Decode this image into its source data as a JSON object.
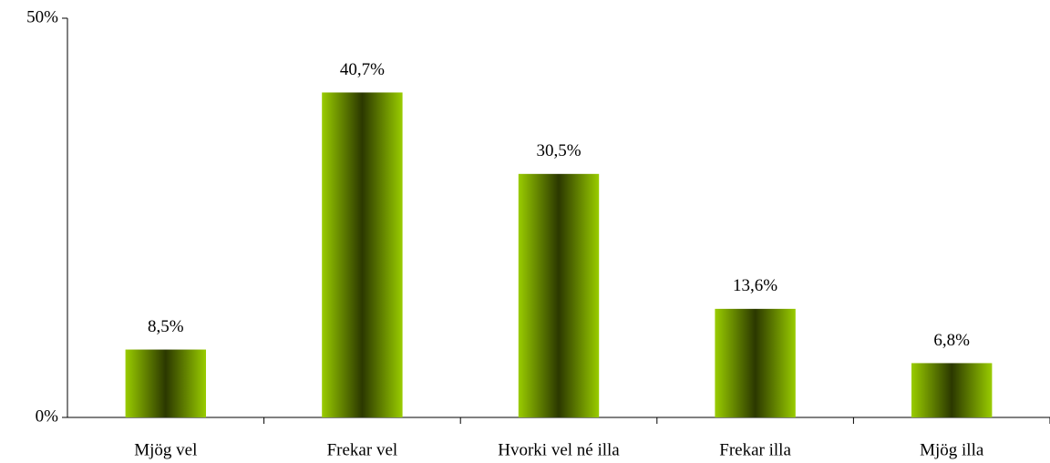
{
  "chart_data": {
    "type": "bar",
    "categories": [
      "Mjög vel",
      "Frekar vel",
      "Hvorki vel né illa",
      "Frekar illa",
      "Mjög illa"
    ],
    "values": [
      8.5,
      40.7,
      30.5,
      13.6,
      6.8
    ],
    "value_labels": [
      "8,5%",
      "40,7%",
      "30,5%",
      "13,6%",
      "6,8%"
    ],
    "color": "#99cc00",
    "ylim": [
      0,
      50
    ],
    "yticks": [
      {
        "value": 0,
        "label": "0%"
      },
      {
        "value": 50,
        "label": "50%"
      }
    ],
    "grid": false
  }
}
